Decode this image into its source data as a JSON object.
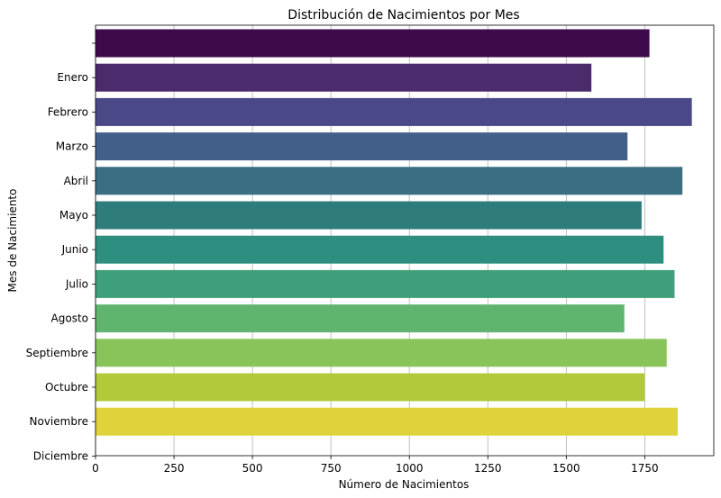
{
  "chart_data": {
    "type": "bar",
    "orientation": "horizontal",
    "title": "Distribución de Nacimientos por Mes",
    "xlabel": "Número de Nacimientos",
    "ylabel": "Mes de Nacimiento",
    "xlim": [
      0,
      1970
    ],
    "x_ticks": [
      0,
      250,
      500,
      750,
      1000,
      1250,
      1500,
      1750
    ],
    "grid": "vertical",
    "y_tick_labels": [
      "",
      "Enero",
      "Febrero",
      "Marzo",
      "Abril",
      "Mayo",
      "Junio",
      "Julio",
      "Agosto",
      "Septiembre",
      "Octubre",
      "Noviembre",
      "Diciembre"
    ],
    "values": [
      1765,
      1580,
      1900,
      1695,
      1870,
      1740,
      1810,
      1845,
      1685,
      1820,
      1750,
      1855
    ],
    "colors": [
      "#440154",
      "#482878",
      "#3e4989",
      "#31688e",
      "#26828e",
      "#1f9e89",
      "#35b779",
      "#6ece58",
      "#b5de2b",
      "#fde725"
    ],
    "colors_full": [
      "#440154",
      "#472a7a",
      "#3e4a89",
      "#33638d",
      "#2a788e",
      "#21918c",
      "#22a884",
      "#44bf70",
      "#7ad151",
      "#b3dc2c",
      "#ddd22a",
      "#fde725"
    ]
  }
}
